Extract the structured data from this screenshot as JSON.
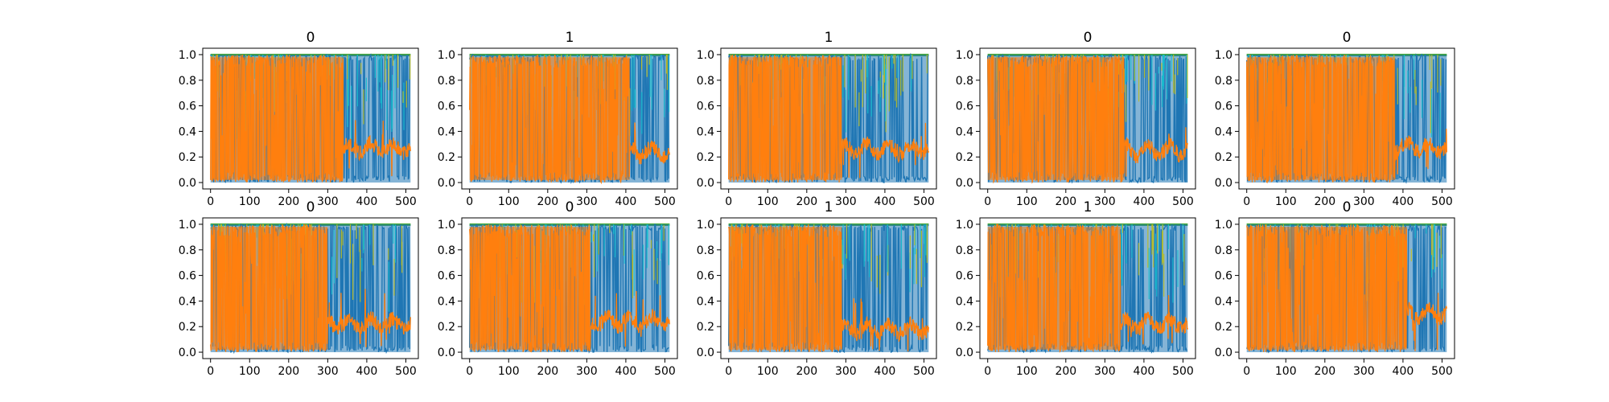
{
  "chart_data": {
    "type": "line",
    "layout": {
      "rows": 2,
      "cols": 5
    },
    "x_ticks": [
      "0",
      "100",
      "200",
      "300",
      "400",
      "500"
    ],
    "y_ticks": [
      "0.0",
      "0.2",
      "0.4",
      "0.6",
      "0.8",
      "1.0"
    ],
    "xlim": [
      -20,
      532
    ],
    "ylim": [
      -0.05,
      1.05
    ],
    "x_length": 512,
    "grid": false,
    "colors": {
      "foreground": "#1f77b4",
      "highlight": "#ff7f0e",
      "accents": [
        "#17becf",
        "#bcbd22",
        "#2ca02c",
        "#e377c2"
      ]
    },
    "panels": [
      {
        "title": "0",
        "switch_x": 340,
        "plateau_y": 0.27
      },
      {
        "title": "1",
        "switch_x": 410,
        "plateau_y": 0.24
      },
      {
        "title": "1",
        "switch_x": 290,
        "plateau_y": 0.26
      },
      {
        "title": "0",
        "switch_x": 350,
        "plateau_y": 0.25
      },
      {
        "title": "0",
        "switch_x": 380,
        "plateau_y": 0.28
      },
      {
        "title": "0",
        "switch_x": 300,
        "plateau_y": 0.22
      },
      {
        "title": "0",
        "switch_x": 310,
        "plateau_y": 0.24
      },
      {
        "title": "1",
        "switch_x": 290,
        "plateau_y": 0.18
      },
      {
        "title": "1",
        "switch_x": 340,
        "plateau_y": 0.22
      },
      {
        "title": "0",
        "switch_x": 410,
        "plateau_y": 0.3
      }
    ]
  }
}
